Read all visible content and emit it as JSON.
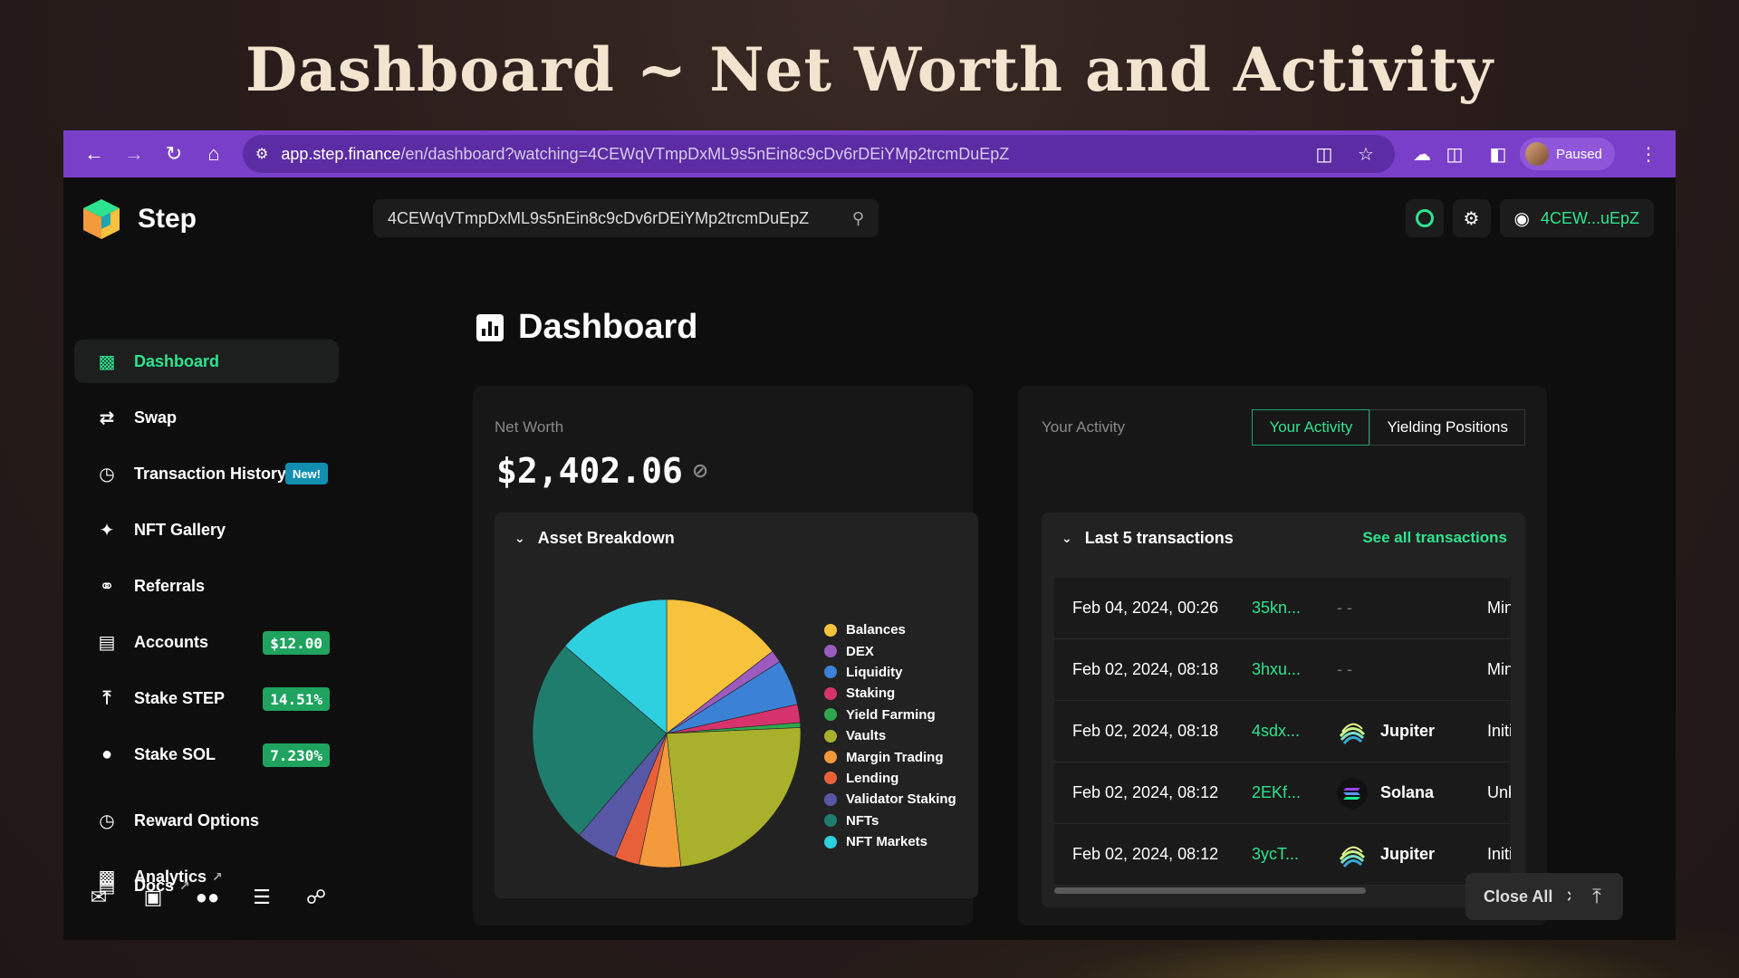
{
  "hero": {
    "title": "Dashboard ~ Net Worth and Activity"
  },
  "browser": {
    "url_host": "app.step.finance",
    "url_path": "/en/dashboard?watching=4CEWqVTmpDxML9s5nEin8c9cDv6rDEiYMp2trcmDuEpZ",
    "profile_status": "Paused"
  },
  "app": {
    "brand": "Step",
    "search_value": "4CEWqVTmpDxML9s5nEin8c9cDv6rDEiYMp2trcmDuEpZ",
    "wallet_short": "4CEW...uEpZ",
    "accent": "#2ee38f"
  },
  "sidebar": {
    "items": [
      {
        "label": "Dashboard",
        "icon": "bar-chart-icon"
      },
      {
        "label": "Swap",
        "icon": "swap-icon"
      },
      {
        "label": "Transaction History",
        "icon": "clock-icon",
        "badge": "New!"
      },
      {
        "label": "NFT Gallery",
        "icon": "sparkle-icon"
      },
      {
        "label": "Referrals",
        "icon": "handshake-icon"
      },
      {
        "label": "Accounts",
        "icon": "archive-icon",
        "badge": "$12.00"
      },
      {
        "label": "Stake STEP",
        "icon": "upload-icon",
        "badge": "14.51%"
      },
      {
        "label": "Stake SOL",
        "icon": "location-icon",
        "badge": "7.230%"
      },
      {
        "label": "Reward Options",
        "icon": "clock-icon"
      },
      {
        "label": "Analytics",
        "icon": "bar-chart-icon"
      },
      {
        "label": "Docs",
        "icon": "document-icon"
      }
    ]
  },
  "dashboard": {
    "title": "Dashboard",
    "net_worth_label": "Net Worth",
    "net_worth_value": "$2,402.06",
    "asset_breakdown_label": "Asset Breakdown",
    "activity_label": "Your Activity",
    "tabs": [
      "Your Activity",
      "Yielding Positions"
    ],
    "last_tx_label": "Last 5 transactions",
    "see_all": "See all transactions"
  },
  "chart_data": {
    "type": "pie",
    "categories": [
      "Balances",
      "DEX",
      "Liquidity",
      "Staking",
      "Yield Farming",
      "Vaults",
      "Margin Trading",
      "Lending",
      "Validator Staking",
      "NFTs",
      "NFT Markets"
    ],
    "values": [
      14.5,
      1.5,
      5.5,
      2.2,
      0.6,
      24.0,
      5.0,
      3.0,
      5.0,
      25.0,
      13.7
    ],
    "colors": [
      "#f7c23c",
      "#9b5bbf",
      "#3b82d6",
      "#d6336c",
      "#2fa84f",
      "#a8b02c",
      "#f39a3c",
      "#e8603a",
      "#5757a6",
      "#1f7d6e",
      "#2ed0e0"
    ],
    "legend_position": "right"
  },
  "transactions": [
    {
      "date": "Feb 04, 2024, 00:26",
      "hash": "35kn...",
      "protocol": "- -",
      "type": "Min"
    },
    {
      "date": "Feb 02, 2024, 08:18",
      "hash": "3hxu...",
      "protocol": "- -",
      "type": "Min"
    },
    {
      "date": "Feb 02, 2024, 08:18",
      "hash": "4sdx...",
      "protocol": "Jupiter",
      "type": "Initi"
    },
    {
      "date": "Feb 02, 2024, 08:12",
      "hash": "2EKf...",
      "protocol": "Solana",
      "type": "Unk"
    },
    {
      "date": "Feb 02, 2024, 08:12",
      "hash": "3ycT...",
      "protocol": "Jupiter",
      "type": "Initi"
    }
  ],
  "footer": {
    "close_all": "Close All"
  }
}
